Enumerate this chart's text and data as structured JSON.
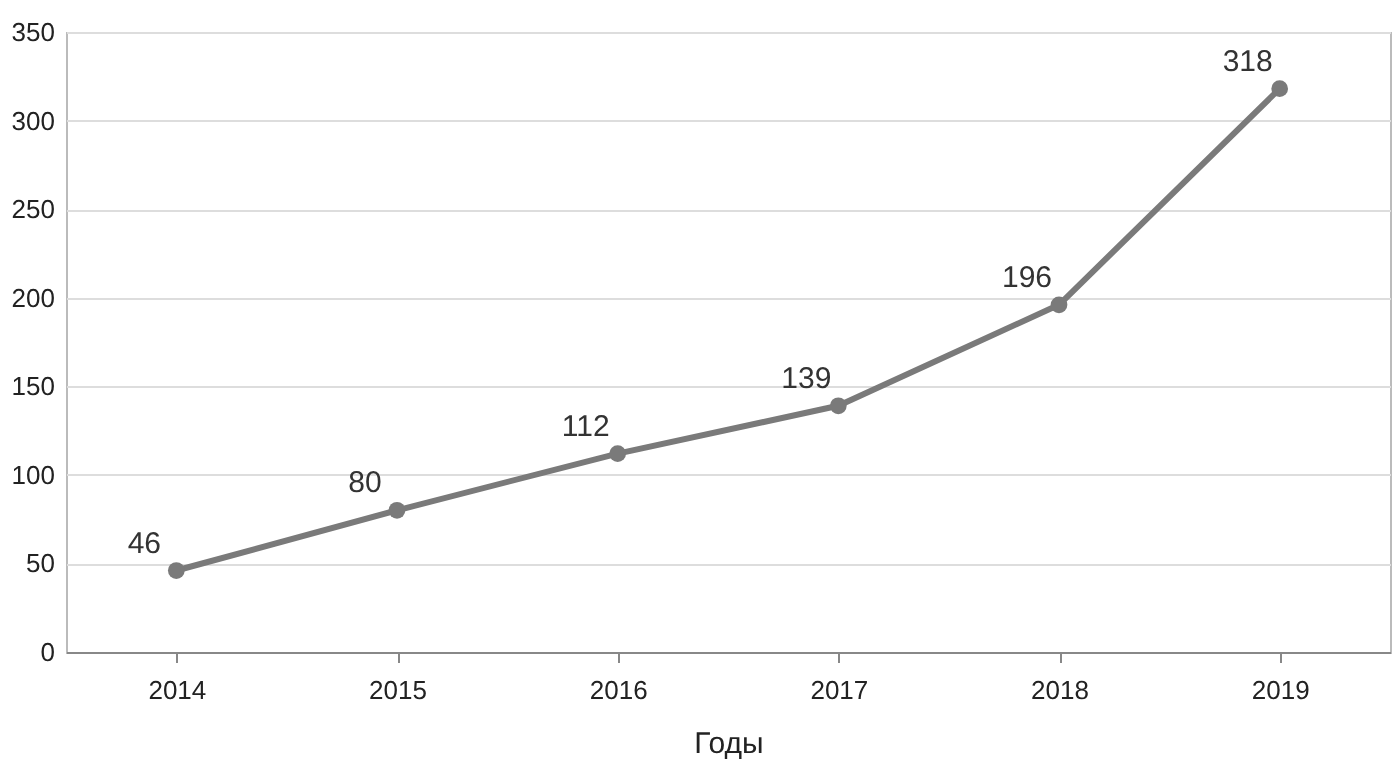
{
  "chart_data": {
    "type": "line",
    "xlabel": "Годы",
    "categories": [
      "2014",
      "2015",
      "2016",
      "2017",
      "2018",
      "2019"
    ],
    "series": [
      {
        "color": "#7a7a7a",
        "values": [
          46,
          80,
          112,
          139,
          196,
          318
        ]
      }
    ],
    "ylim": [
      0,
      350
    ],
    "yticks": [
      0,
      50,
      100,
      150,
      200,
      250,
      300,
      350
    ],
    "grid": "y",
    "marker": "circle",
    "line_style": "solid",
    "data_labels": true
  }
}
